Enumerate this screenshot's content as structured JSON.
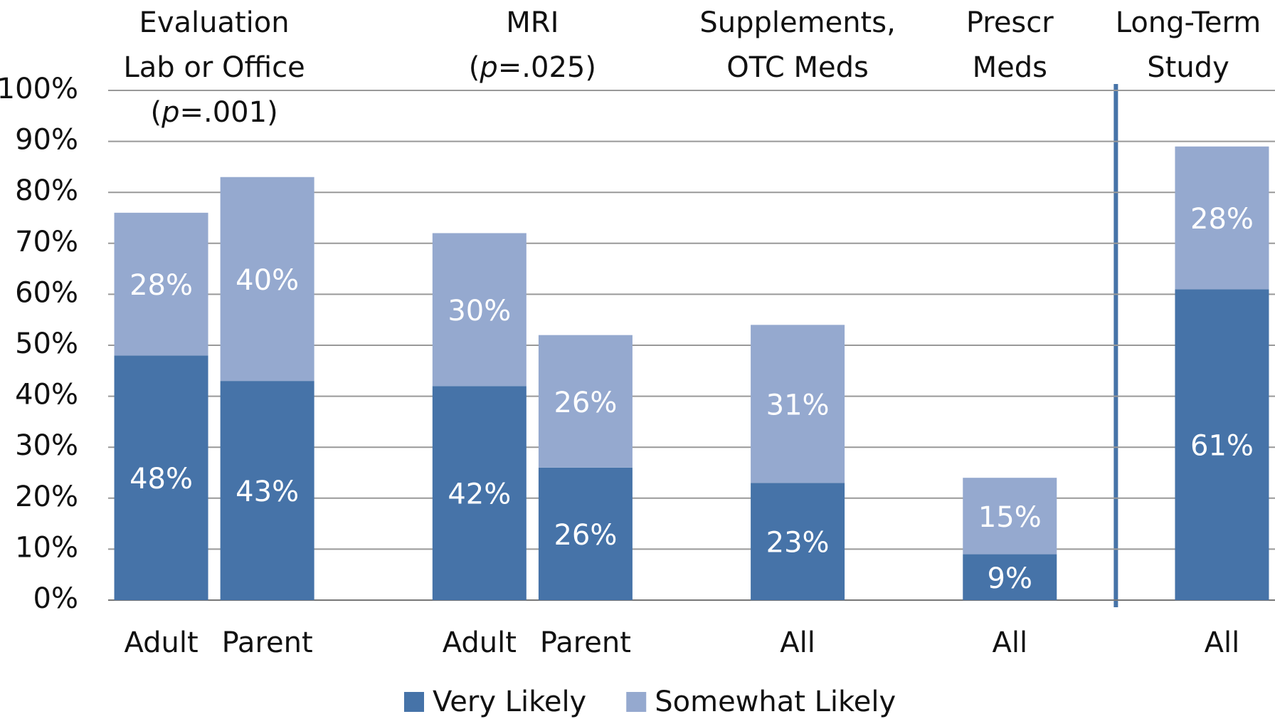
{
  "chart_data": {
    "type": "stacked_bar",
    "group_titles": [
      [
        "Evaluation",
        "Lab or Office",
        "(p=.001)"
      ],
      [
        "MRI",
        "(p=.025)"
      ],
      [
        "Supplements,",
        "OTC Meds"
      ],
      [
        "Prescr",
        "Meds"
      ],
      [
        "Long-Term",
        "Study"
      ]
    ],
    "categories": [
      "Adult",
      "Parent",
      null,
      "Adult",
      "Parent",
      null,
      "All",
      null,
      "All",
      null,
      "All"
    ],
    "series": [
      {
        "name": "Very Likely",
        "color": "#4673a8",
        "values": [
          48,
          43,
          null,
          42,
          26,
          null,
          23,
          null,
          9,
          null,
          61
        ],
        "value_labels": [
          "48%",
          "43%",
          null,
          "42%",
          "26%",
          null,
          "23%",
          null,
          "9%",
          null,
          "61%"
        ]
      },
      {
        "name": "Somewhat Likely",
        "color": "#95a9cf",
        "values": [
          28,
          40,
          null,
          30,
          26,
          null,
          31,
          null,
          15,
          null,
          28
        ],
        "value_labels": [
          "28%",
          "40%",
          null,
          "30%",
          "26%",
          null,
          "31%",
          null,
          "15%",
          null,
          "28%"
        ]
      }
    ],
    "ylim": [
      0,
      100
    ],
    "yticks": [
      {
        "value": 0,
        "label": "0%"
      },
      {
        "value": 10,
        "label": "10%"
      },
      {
        "value": 20,
        "label": "20%"
      },
      {
        "value": 30,
        "label": "30%"
      },
      {
        "value": 40,
        "label": "40%"
      },
      {
        "value": 50,
        "label": "50%"
      },
      {
        "value": 60,
        "label": "60%"
      },
      {
        "value": 70,
        "label": "70%"
      },
      {
        "value": 80,
        "label": "80%"
      },
      {
        "value": 90,
        "label": "90%"
      },
      {
        "value": 100,
        "label": "100%"
      }
    ],
    "grid": true,
    "legend": "bottom"
  }
}
